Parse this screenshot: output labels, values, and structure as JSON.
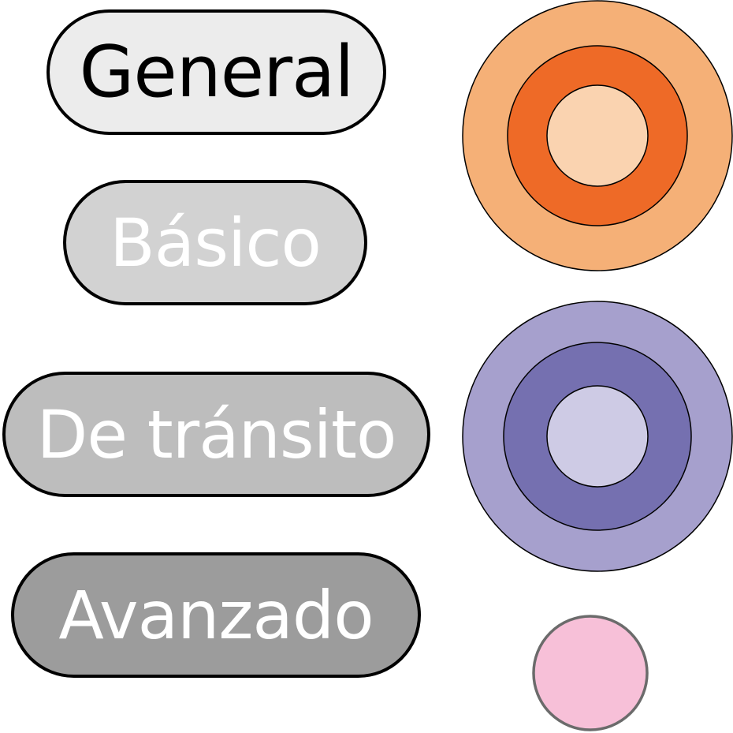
{
  "levels": [
    {
      "label": "General",
      "fill": "#ececec",
      "text_color": "#000000"
    },
    {
      "label": "Básico",
      "fill": "#d2d2d2",
      "text_color": "#ffffff"
    },
    {
      "label": "De tránsito",
      "fill": "#bdbdbd",
      "text_color": "#ffffff"
    },
    {
      "label": "Avanzado",
      "fill": "#9c9c9c",
      "text_color": "#ffffff"
    }
  ],
  "rings": {
    "orange": {
      "outer": "#f5b077",
      "middle": "#ee6a27",
      "inner": "#fad3b0"
    },
    "purple": {
      "outer": "#a6a0cd",
      "middle": "#7570b0",
      "inner": "#cecbe5"
    },
    "pink": {
      "fill": "#f7c0d8",
      "stroke": "#6b6b6b"
    }
  }
}
